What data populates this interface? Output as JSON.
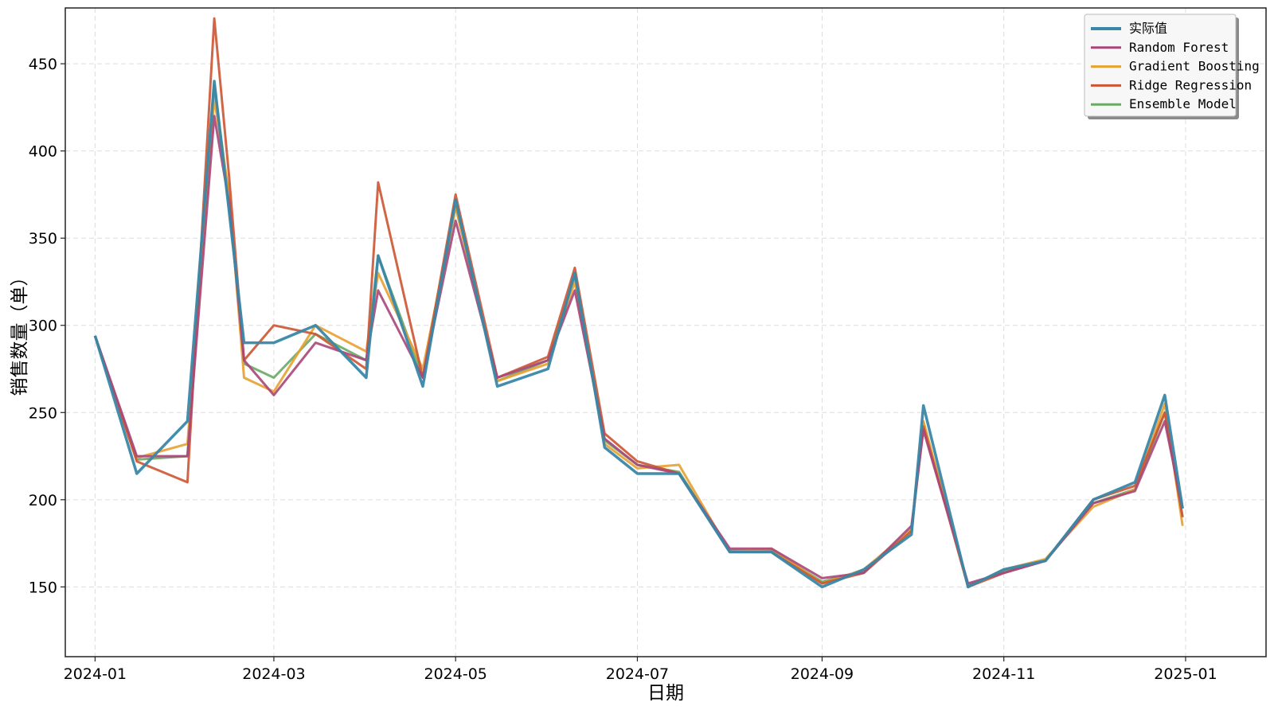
{
  "chart_data": {
    "type": "line",
    "xlabel": "日期",
    "ylabel": "销售数量（单）",
    "x_ticks": [
      "2024-01",
      "2024-03",
      "2024-05",
      "2024-07",
      "2024-09",
      "2024-11",
      "2025-01"
    ],
    "x_range": [
      "2023-12-22",
      "2025-01-28"
    ],
    "ylim": [
      110,
      482
    ],
    "y_ticks": [
      150,
      200,
      250,
      300,
      350,
      400,
      450
    ],
    "grid": true,
    "legend_position": "top-right",
    "series": [
      {
        "name": "实际值",
        "color": "#3a87a8"
      },
      {
        "name": "Random Forest",
        "color": "#a8467a"
      },
      {
        "name": "Gradient Boosting",
        "color": "#e8a030"
      },
      {
        "name": "Ridge Regression",
        "color": "#cc5533"
      },
      {
        "name": "Ensemble Model",
        "color": "#6aaa64"
      }
    ],
    "x": [
      "2024-01-01",
      "2024-01-15",
      "2024-02-01",
      "2024-02-10",
      "2024-02-15",
      "2024-02-20",
      "2024-03-01",
      "2024-03-15",
      "2024-04-01",
      "2024-04-05",
      "2024-04-20",
      "2024-05-01",
      "2024-05-15",
      "2024-06-01",
      "2024-06-10",
      "2024-06-20",
      "2024-07-01",
      "2024-07-15",
      "2024-08-01",
      "2024-08-15",
      "2024-09-01",
      "2024-09-15",
      "2024-10-01",
      "2024-10-05",
      "2024-10-20",
      "2024-11-01",
      "2024-11-15",
      "2024-12-01",
      "2024-12-15",
      "2024-12-25",
      "2024-12-31"
    ],
    "actual": [
      294,
      215,
      245,
      440,
      365,
      290,
      290,
      300,
      270,
      340,
      265,
      372,
      265,
      275,
      330,
      230,
      215,
      215,
      170,
      170,
      150,
      160,
      180,
      254,
      150,
      160,
      165,
      200,
      210,
      260,
      195
    ],
    "predicted": {
      "Random Forest": [
        294,
        225,
        225,
        420,
        370,
        280,
        260,
        290,
        280,
        320,
        270,
        360,
        270,
        280,
        320,
        235,
        220,
        215,
        172,
        172,
        155,
        158,
        185,
        240,
        152,
        158,
        165,
        198,
        205,
        245,
        195
      ],
      "Gradient Boosting": [
        294,
        224,
        232,
        430,
        375,
        270,
        262,
        300,
        285,
        330,
        275,
        368,
        268,
        278,
        325,
        232,
        218,
        220,
        170,
        172,
        152,
        160,
        183,
        245,
        150,
        160,
        166,
        196,
        206,
        255,
        185
      ],
      "Ridge Regression": [
        294,
        222,
        210,
        476,
        385,
        280,
        300,
        295,
        275,
        382,
        270,
        375,
        270,
        282,
        333,
        238,
        222,
        215,
        170,
        170,
        152,
        158,
        182,
        242,
        150,
        158,
        165,
        200,
        208,
        250,
        190
      ],
      "Ensemble Model": [
        294,
        223,
        225,
        438,
        372,
        278,
        270,
        295,
        280,
        340,
        270,
        368,
        268,
        280,
        328,
        234,
        220,
        216,
        171,
        171,
        153,
        159,
        183,
        244,
        151,
        159,
        165,
        198,
        206,
        250,
        190
      ]
    }
  }
}
